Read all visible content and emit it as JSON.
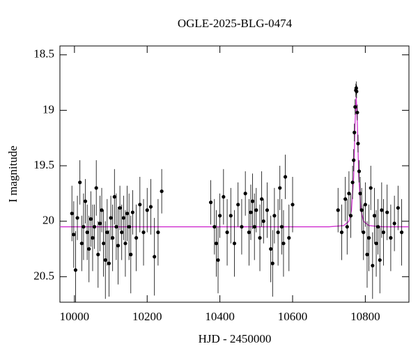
{
  "chart_data": {
    "type": "scatter",
    "title": "OGLE-2025-BLG-0474",
    "xlabel": "HJD - 2450000",
    "ylabel": "I magnitude",
    "xlim": [
      9960,
      10920
    ],
    "ylim": [
      20.73,
      18.42
    ],
    "invert_y": true,
    "xticks": [
      10000,
      10200,
      10400,
      10600,
      10800
    ],
    "yticks": [
      18.5,
      19,
      19.5,
      20,
      20.5
    ],
    "color": "#000000",
    "x": [
      9993,
      9998,
      10003,
      10008,
      10015,
      10020,
      10025,
      10030,
      10035,
      10040,
      10045,
      10050,
      10055,
      10060,
      10065,
      10070,
      10075,
      10080,
      10085,
      10090,
      10095,
      10100,
      10105,
      10110,
      10115,
      10120,
      10125,
      10130,
      10135,
      10140,
      10145,
      10150,
      10155,
      10160,
      10170,
      10180,
      10190,
      10200,
      10210,
      10220,
      10230,
      10240,
      10375,
      10385,
      10390,
      10395,
      10400,
      10410,
      10420,
      10430,
      10440,
      10450,
      10460,
      10470,
      10480,
      10485,
      10490,
      10495,
      10500,
      10510,
      10515,
      10520,
      10530,
      10540,
      10545,
      10550,
      10560,
      10565,
      10570,
      10575,
      10580,
      10590,
      10600,
      10725,
      10735,
      10745,
      10750,
      10755,
      10760,
      10765,
      10768,
      10770,
      10772,
      10774,
      10775,
      10776,
      10778,
      10780,
      10783,
      10786,
      10790,
      10795,
      10800,
      10805,
      10810,
      10815,
      10820,
      10825,
      10830,
      10835,
      10840,
      10845,
      10850,
      10860,
      10870,
      10880,
      10890,
      10900
    ],
    "values": [
      19.93,
      20.12,
      20.44,
      19.97,
      19.65,
      20.2,
      20.05,
      19.82,
      20.1,
      20.25,
      19.98,
      20.15,
      20.05,
      19.7,
      20.3,
      20.02,
      19.9,
      20.2,
      20.35,
      20.1,
      20.38,
      19.97,
      20.15,
      19.78,
      20.05,
      20.22,
      19.88,
      20.1,
      19.97,
      20.2,
      19.93,
      20.05,
      20.3,
      19.92,
      20.15,
      19.85,
      20.1,
      19.9,
      19.87,
      20.32,
      20.1,
      19.73,
      19.83,
      20.05,
      20.2,
      20.35,
      19.95,
      19.78,
      20.1,
      19.95,
      20.2,
      19.85,
      20.05,
      19.75,
      20.1,
      19.92,
      19.82,
      20.05,
      19.9,
      20.15,
      19.8,
      20.0,
      19.9,
      20.25,
      20.38,
      19.95,
      20.1,
      19.7,
      20.05,
      20.2,
      19.6,
      20.15,
      19.85,
      19.9,
      20.1,
      19.8,
      20.05,
      19.75,
      19.95,
      19.65,
      19.45,
      19.2,
      18.97,
      18.82,
      18.8,
      18.83,
      19.02,
      19.3,
      19.55,
      19.75,
      19.9,
      20.1,
      19.85,
      20.3,
      20.15,
      19.7,
      20.4,
      19.95,
      20.2,
      20.05,
      20.35,
      19.9,
      20.1,
      19.92,
      20.15,
      20.02,
      19.88,
      20.1
    ],
    "errors": [
      0.25,
      0.3,
      0.35,
      0.2,
      0.2,
      0.25,
      0.3,
      0.2,
      0.25,
      0.3,
      0.25,
      0.3,
      0.2,
      0.25,
      0.3,
      0.25,
      0.2,
      0.3,
      0.35,
      0.3,
      0.3,
      0.2,
      0.3,
      0.25,
      0.3,
      0.35,
      0.2,
      0.25,
      0.2,
      0.3,
      0.25,
      0.3,
      0.35,
      0.2,
      0.3,
      0.25,
      0.3,
      0.2,
      0.25,
      0.35,
      0.3,
      0.2,
      0.2,
      0.25,
      0.3,
      0.3,
      0.2,
      0.25,
      0.3,
      0.25,
      0.3,
      0.2,
      0.25,
      0.2,
      0.3,
      0.25,
      0.25,
      0.3,
      0.2,
      0.3,
      0.25,
      0.2,
      0.25,
      0.3,
      0.3,
      0.25,
      0.3,
      0.2,
      0.25,
      0.3,
      0.2,
      0.3,
      0.25,
      0.2,
      0.25,
      0.2,
      0.25,
      0.2,
      0.2,
      0.15,
      0.1,
      0.08,
      0.07,
      0.06,
      0.06,
      0.06,
      0.07,
      0.08,
      0.1,
      0.15,
      0.2,
      0.25,
      0.2,
      0.3,
      0.3,
      0.2,
      0.3,
      0.25,
      0.3,
      0.25,
      0.3,
      0.25,
      0.3,
      0.25,
      0.3,
      0.25,
      0.2,
      0.3
    ],
    "model": {
      "type": "line",
      "color": "#d030d0",
      "x": [
        9960,
        10700,
        10740,
        10755,
        10762,
        10768,
        10772,
        10775,
        10778,
        10782,
        10788,
        10795,
        10810,
        10850,
        10920
      ],
      "values": [
        20.05,
        20.05,
        20.04,
        20.0,
        19.9,
        19.6,
        19.1,
        18.88,
        19.1,
        19.6,
        19.9,
        20.0,
        20.04,
        20.05,
        20.05
      ]
    }
  }
}
